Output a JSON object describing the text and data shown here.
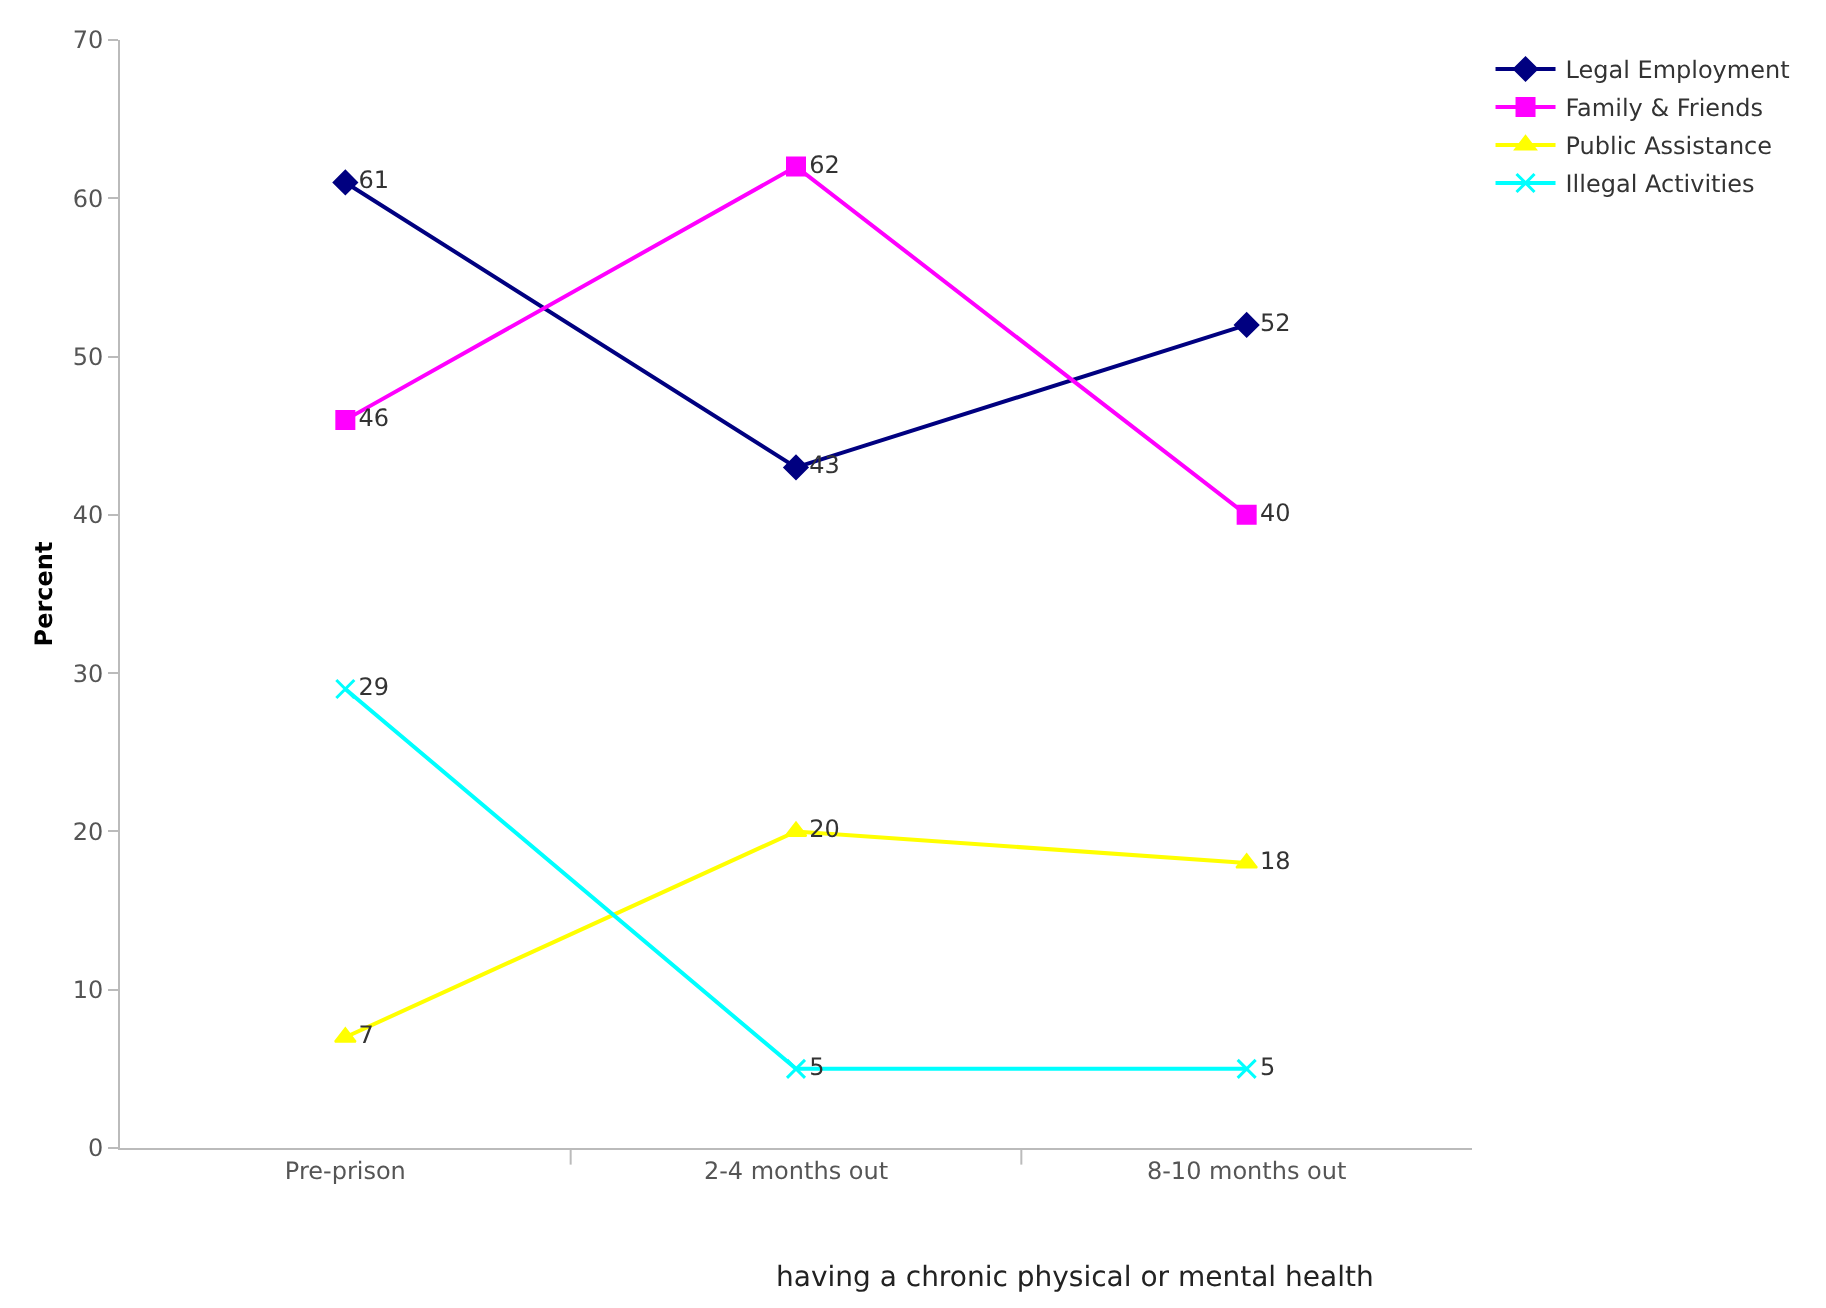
{
  "chart_data": {
    "type": "line",
    "ylabel": "Percent",
    "categories": [
      "Pre-prison",
      "2-4 months out",
      "8-10 months out"
    ],
    "series": [
      {
        "name": "Legal Employment",
        "color": "#000080",
        "marker": "diamond",
        "values": [
          61,
          43,
          52
        ]
      },
      {
        "name": "Family & Friends",
        "color": "#ff00ff",
        "marker": "square",
        "values": [
          46,
          62,
          40
        ]
      },
      {
        "name": "Public Assistance",
        "color": "#ffff00",
        "marker": "triangle",
        "values": [
          7,
          20,
          18
        ]
      },
      {
        "name": "Illegal Activities",
        "color": "#00ffff",
        "marker": "cross",
        "values": [
          29,
          5,
          5
        ]
      }
    ],
    "ylim": [
      0,
      70
    ],
    "yticks": [
      0,
      10,
      20,
      30,
      40,
      50,
      60,
      70
    ],
    "grid": false,
    "legend": "top right",
    "data_labels": true,
    "line_style": "solid",
    "annotations": [
      "having a chronic physical or mental health"
    ]
  }
}
